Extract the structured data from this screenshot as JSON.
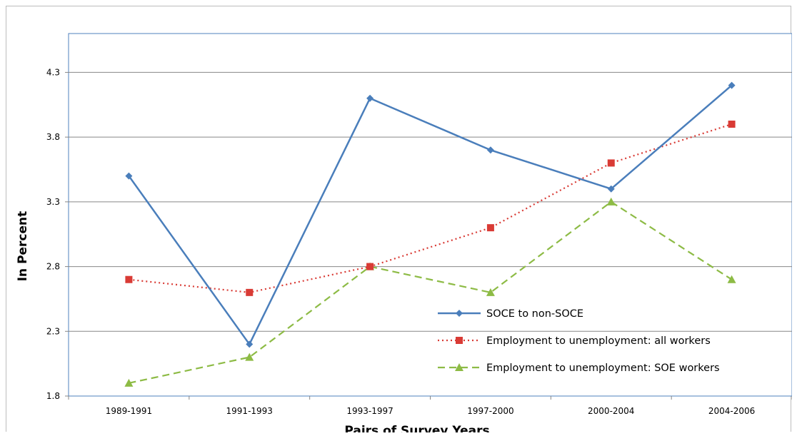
{
  "chart_data": {
    "type": "line",
    "categories": [
      "1989-1991",
      "1991-1993",
      "1993-1997",
      "1997-2000",
      "2000-2004",
      "2004-2006"
    ],
    "series": [
      {
        "name": "SOCE to non-SOCE",
        "values": [
          3.5,
          2.2,
          4.1,
          3.7,
          3.4,
          4.2
        ],
        "color": "#4a7ebb",
        "marker": "diamond",
        "dash": "solid"
      },
      {
        "name": "Employment to unemployment: all workers",
        "values": [
          2.7,
          2.6,
          2.8,
          3.1,
          3.6,
          3.9
        ],
        "color": "#d93b35",
        "marker": "square",
        "dash": "dotted"
      },
      {
        "name": "Employment to unemployment: SOE workers",
        "values": [
          1.9,
          2.1,
          2.8,
          2.6,
          3.3,
          2.7
        ],
        "color": "#8dbb45",
        "marker": "triangle",
        "dash": "dashed"
      }
    ],
    "yticks": [
      "1.8",
      "2.3",
      "2.8",
      "3.3",
      "3.8",
      "4.3"
    ],
    "ylim": [
      1.8,
      4.6
    ],
    "ylabel": "In Percent",
    "xlabel": "Pairs of Survey Years",
    "grid": true,
    "legend_position": "bottom-right"
  }
}
